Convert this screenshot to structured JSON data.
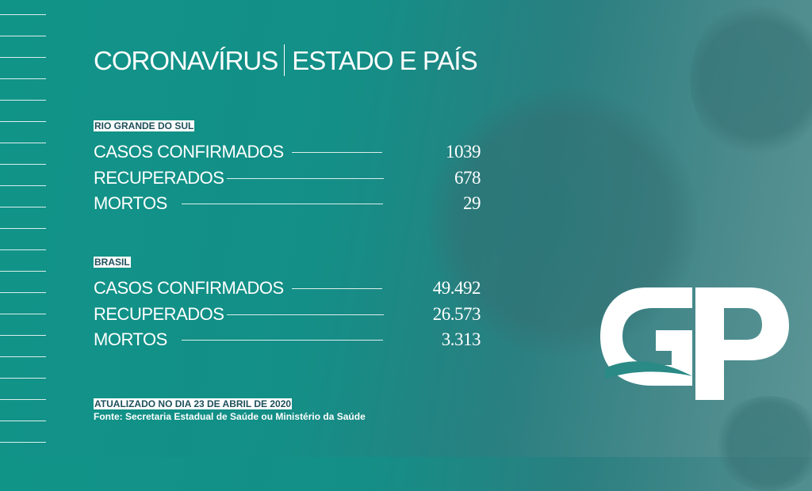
{
  "title": {
    "light": "CORONAVÍRUS",
    "bold": "ESTADO E PAÍS"
  },
  "sections": [
    {
      "label": "RIO GRANDE DO SUL",
      "rows": [
        {
          "label": "CASOS CONFIRMADOS",
          "value": "1039"
        },
        {
          "label": "RECUPERADOS",
          "value": "678"
        },
        {
          "label": "MORTOS",
          "value": "29"
        }
      ]
    },
    {
      "label": "BRASIL",
      "rows": [
        {
          "label": "CASOS CONFIRMADOS",
          "value": "49.492"
        },
        {
          "label": "RECUPERADOS",
          "value": "26.573"
        },
        {
          "label": "MORTOS",
          "value": "3.313"
        }
      ]
    }
  ],
  "footer": {
    "updated": "ATUALIZADO NO DIA 23 DE ABRIL DE 2020",
    "source": "Fonte: Secretaria Estadual de Saúde ou Ministério da Saúde"
  },
  "logo": {
    "text": "GP"
  },
  "colors": {
    "background": "#119488",
    "label_text": "#1d4f5a"
  }
}
